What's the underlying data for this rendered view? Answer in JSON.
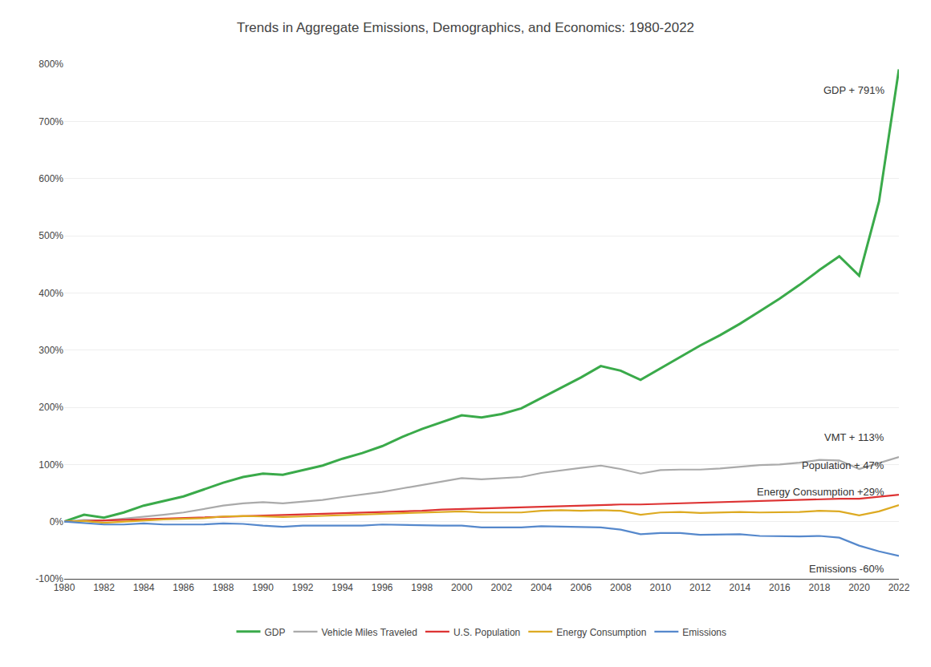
{
  "chart_data": {
    "type": "line",
    "title": "Trends in Aggregate Emissions, Demographics, and Economics: 1980-2022",
    "x": [
      1980,
      1981,
      1982,
      1983,
      1984,
      1985,
      1986,
      1987,
      1988,
      1989,
      1990,
      1991,
      1992,
      1993,
      1994,
      1995,
      1996,
      1997,
      1998,
      1999,
      2000,
      2001,
      2002,
      2003,
      2004,
      2005,
      2006,
      2007,
      2008,
      2009,
      2010,
      2011,
      2012,
      2013,
      2014,
      2015,
      2016,
      2017,
      2018,
      2019,
      2020,
      2021,
      2022
    ],
    "series": [
      {
        "name": "GDP",
        "color": "#3aaa4a",
        "values": [
          0,
          12,
          7,
          16,
          28,
          36,
          44,
          56,
          68,
          78,
          84,
          82,
          90,
          98,
          110,
          120,
          132,
          148,
          162,
          174,
          186,
          182,
          188,
          198,
          216,
          234,
          252,
          272,
          264,
          248,
          268,
          288,
          308,
          326,
          346,
          368,
          390,
          414,
          440,
          464,
          430,
          560,
          791
        ]
      },
      {
        "name": "Vehicle Miles Traveled",
        "color": "#aaaaaa",
        "values": [
          0,
          3,
          2,
          5,
          8,
          12,
          16,
          22,
          28,
          32,
          34,
          32,
          35,
          38,
          43,
          47,
          52,
          58,
          64,
          70,
          76,
          74,
          76,
          78,
          85,
          90,
          94,
          98,
          92,
          84,
          90,
          91,
          91,
          93,
          96,
          99,
          100,
          103,
          108,
          107,
          92,
          102,
          113
        ]
      },
      {
        "name": "U.S. Population",
        "color": "#dd3333",
        "values": [
          0,
          1,
          2,
          3,
          4,
          5,
          6,
          7,
          8,
          9,
          10,
          11,
          12,
          13,
          14,
          15,
          17,
          18,
          19,
          21,
          22,
          23,
          24,
          25,
          26,
          27,
          28,
          29,
          30,
          30,
          31,
          32,
          33,
          34,
          35,
          36,
          37,
          38,
          39,
          40,
          40,
          44,
          47
        ]
      },
      {
        "name": "Energy Consumption",
        "color": "#ddaa22",
        "values": [
          0,
          1,
          -2,
          0,
          3,
          4,
          5,
          6,
          9,
          10,
          9,
          8,
          9,
          10,
          12,
          13,
          14,
          15,
          15,
          16,
          18,
          16,
          16,
          16,
          19,
          20,
          19,
          20,
          19,
          12,
          16,
          17,
          15,
          16,
          17,
          16,
          16,
          17,
          19,
          18,
          11,
          18,
          29
        ]
      },
      {
        "name": "Emissions",
        "color": "#5588cc",
        "values": [
          0,
          -2,
          -5,
          -5,
          -3,
          -5,
          -5,
          -5,
          -3,
          -4,
          -7,
          -9,
          -7,
          -7,
          -6,
          -7,
          -5,
          -6,
          -7,
          -7,
          -7,
          -10,
          -10,
          -10,
          -8,
          -9,
          -10,
          -10,
          -14,
          -22,
          -20,
          -20,
          -23,
          -22,
          -22,
          -25,
          -26,
          -26,
          -25,
          -28,
          -42,
          -52,
          -60
        ]
      }
    ],
    "annotations": [
      {
        "text": "GDP + 791%",
        "y": 755
      },
      {
        "text": "VMT + 113%",
        "y": 148
      },
      {
        "text": "Population + 47%",
        "y": 98
      },
      {
        "text": "Energy Consumption +29%",
        "y": 52
      },
      {
        "text": "Emissions -60%",
        "y": -82
      }
    ],
    "xlim": [
      1980,
      2022
    ],
    "xticks": [
      1980,
      1982,
      1984,
      1986,
      1988,
      1990,
      1992,
      1994,
      1996,
      1998,
      2000,
      2002,
      2004,
      2006,
      2008,
      2010,
      2012,
      2014,
      2016,
      2018,
      2020,
      2022
    ],
    "ylim": [
      -100,
      800
    ],
    "yticks": [
      {
        "value": -100,
        "label": "-100%"
      },
      {
        "value": 0,
        "label": "0%"
      },
      {
        "value": 100,
        "label": "100%"
      },
      {
        "value": 200,
        "label": "200%"
      },
      {
        "value": 300,
        "label": "300%"
      },
      {
        "value": 400,
        "label": "400%"
      },
      {
        "value": 500,
        "label": "500%"
      },
      {
        "value": 600,
        "label": "600%"
      },
      {
        "value": 700,
        "label": "700%"
      },
      {
        "value": 800,
        "label": "800%"
      }
    ],
    "grid": true,
    "legend": "bottom"
  }
}
